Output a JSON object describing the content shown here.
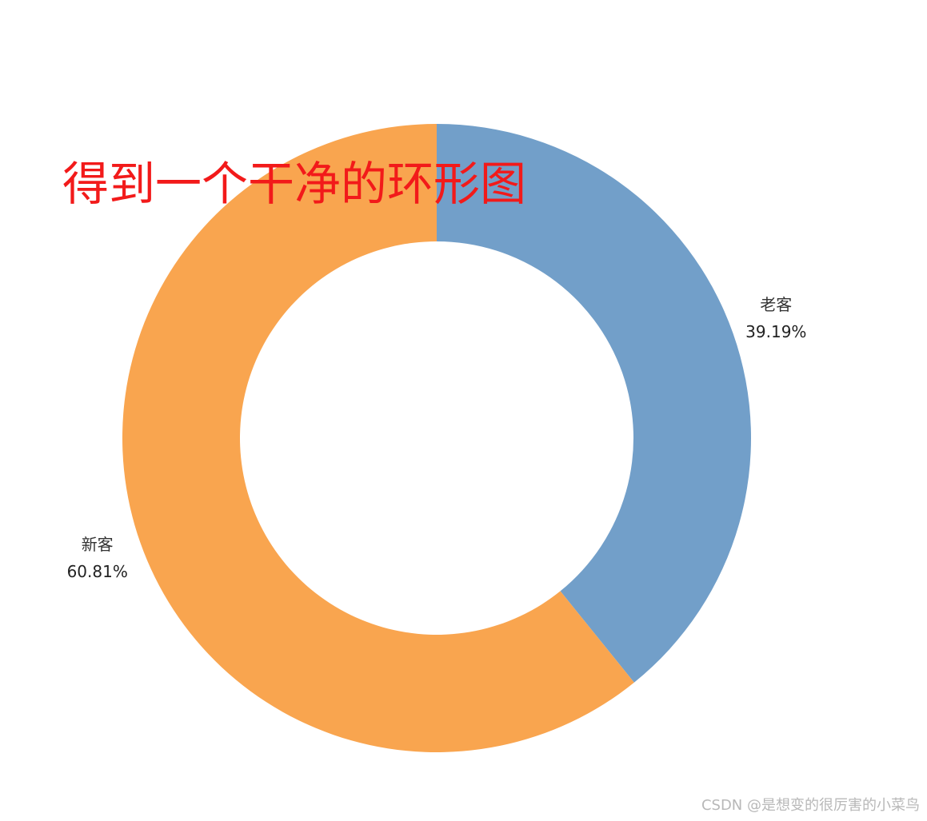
{
  "chart_data": {
    "type": "pie",
    "categories": [
      "老客",
      "新客"
    ],
    "values": [
      39.19,
      60.81
    ],
    "value_labels": [
      "39.19%",
      "60.81%"
    ],
    "colors": [
      "#729fc9",
      "#f9a54f"
    ],
    "donut": true,
    "annotation": "得到一个干净的环形图"
  },
  "watermark": "CSDN @是想变的很厉害的小菜鸟"
}
